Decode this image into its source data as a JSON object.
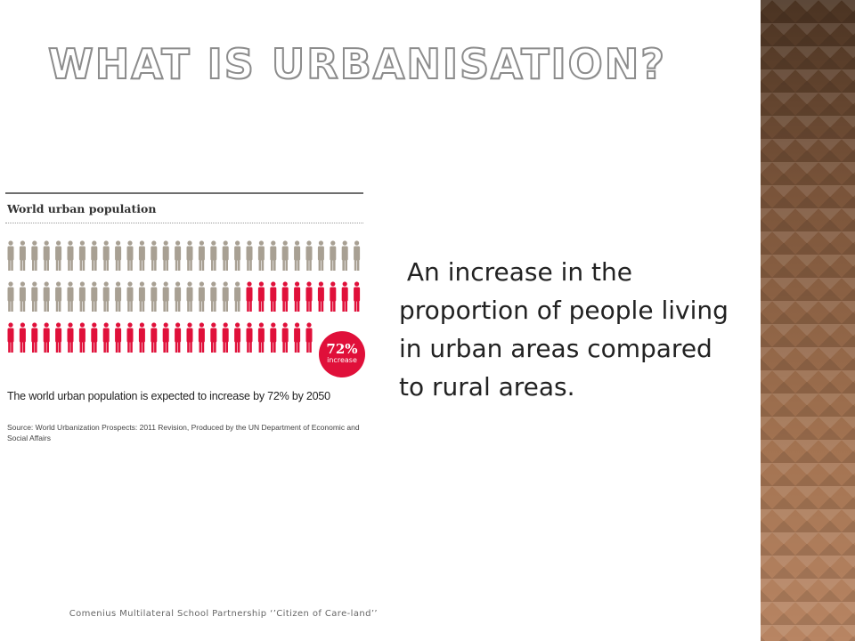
{
  "slide": {
    "title": "WHAT IS URBANISATION?",
    "body_text": " An increase in the proportion of people living in urban areas compared to rural areas.",
    "footer": "Comenius Multilateral School Partnership ‘’Citizen of Care-land’’"
  },
  "infographic": {
    "heading": "World urban population",
    "badge_percent": "72%",
    "badge_label": "increase",
    "caption": "The world urban population is expected to increase by 72% by 2050",
    "source": "Source: World Urbanization Prospects: 2011 Revision, Produced by the UN Department of Economic and Social Affairs",
    "figures_per_row": 30,
    "rows": 3,
    "red_in_row_2": 10,
    "red_in_row_3": 26,
    "colors": {
      "grey": "#a8a093",
      "red": "#e0103a"
    }
  },
  "colors": {
    "title_outline": "#8c8c8c",
    "band": "#8a5e3e",
    "body_text": "#222222"
  }
}
